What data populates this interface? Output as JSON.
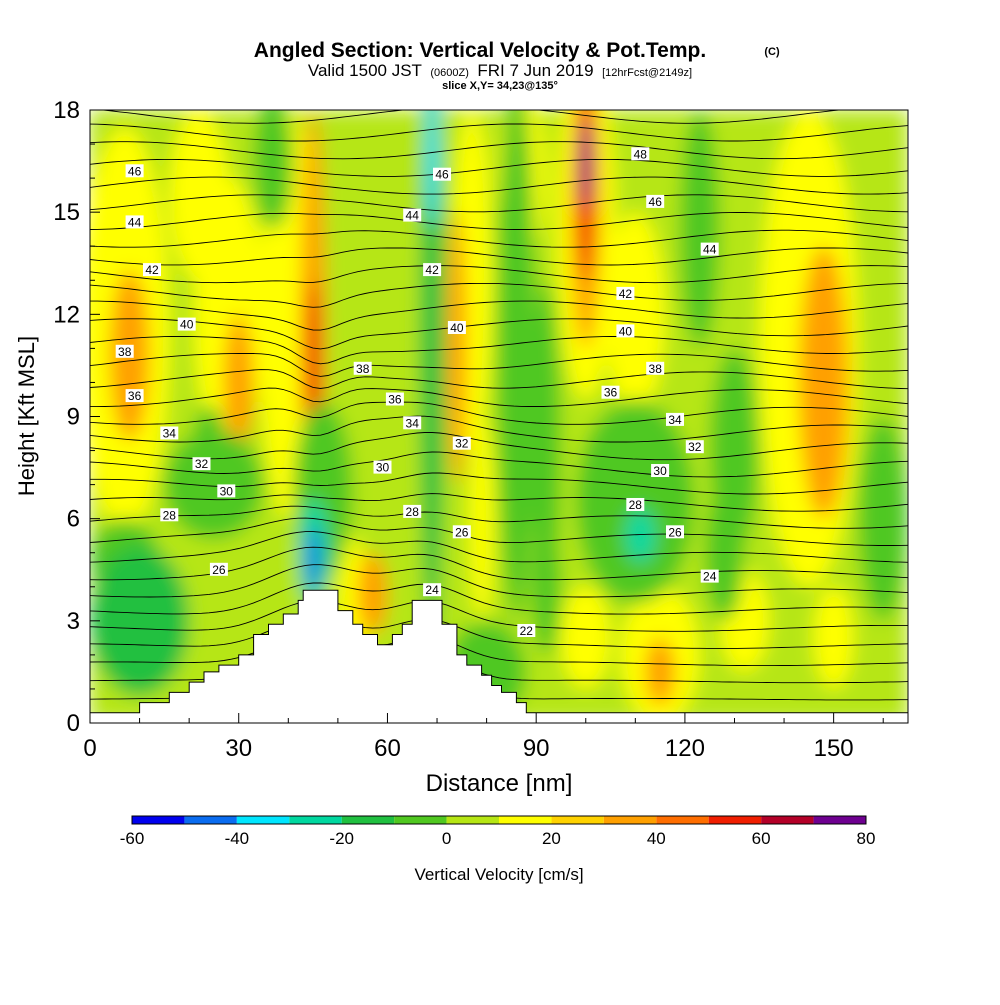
{
  "chart_data": {
    "type": "heatmap",
    "title": "Angled Section: Vertical Velocity & Pot.Temp.",
    "title_suffix": "(C)",
    "subtitle_parts": [
      "Valid 1500 JST",
      "(0600Z)",
      "FRI 7 Jun 2019",
      "[12hrFcst@2149z]"
    ],
    "subtitle2": "slice X,Y= 34,23@135°",
    "xlabel": "Distance [nm]",
    "ylabel": "Height [Kft MSL]",
    "xlim": [
      0,
      165
    ],
    "ylim": [
      0,
      18
    ],
    "xticks": [
      "0",
      "30",
      "60",
      "90",
      "120",
      "150"
    ],
    "xtick_values": [
      0,
      30,
      60,
      90,
      120,
      150
    ],
    "yticks": [
      "0",
      "3",
      "6",
      "9",
      "12",
      "15",
      "18"
    ],
    "ytick_values": [
      0,
      3,
      6,
      9,
      12,
      15,
      18
    ],
    "colorbar": {
      "label": "Vertical Velocity [cm/s]",
      "tick_labels": [
        "-60",
        "-40",
        "-20",
        "0",
        "20",
        "40",
        "60",
        "80"
      ],
      "tick_values": [
        -60,
        -40,
        -20,
        0,
        20,
        40,
        60,
        80
      ],
      "bins": [
        -60,
        -50,
        -40,
        -30,
        -20,
        -10,
        0,
        10,
        20,
        30,
        40,
        50,
        60,
        70,
        80
      ],
      "colors": [
        "#0000ee",
        "#0a6cf0",
        "#00e6ff",
        "#00d8a0",
        "#20c040",
        "#50c820",
        "#b6e614",
        "#ffff00",
        "#ffd200",
        "#ffa000",
        "#ff6e00",
        "#f01e00",
        "#b40028",
        "#6e0090"
      ]
    },
    "vertical_velocity_features": [
      {
        "x": 45,
        "z": 4.8,
        "w": -60,
        "note": "downdraft on lee of peak"
      },
      {
        "x": 69,
        "z": 16.5,
        "w": -40,
        "note": "downdraft column"
      },
      {
        "x": 45,
        "z": 10.5,
        "w": 50
      },
      {
        "x": 100,
        "z": 16.5,
        "w": 70
      },
      {
        "x": 7,
        "z": 10.8,
        "w": 30
      },
      {
        "x": 148,
        "z": 9.5,
        "w": 30
      },
      {
        "x": 110,
        "z": 5.5,
        "w": -25
      }
    ],
    "isentrope_labels": [
      {
        "value": "46",
        "x": 9,
        "z": 16.2
      },
      {
        "value": "44",
        "x": 9,
        "z": 14.7
      },
      {
        "value": "42",
        "x": 12.5,
        "z": 13.3
      },
      {
        "value": "40",
        "x": 19.5,
        "z": 11.7
      },
      {
        "value": "38",
        "x": 7,
        "z": 10.9
      },
      {
        "value": "36",
        "x": 9,
        "z": 9.6
      },
      {
        "value": "34",
        "x": 16,
        "z": 8.5
      },
      {
        "value": "32",
        "x": 22.5,
        "z": 7.6
      },
      {
        "value": "30",
        "x": 27.5,
        "z": 6.8
      },
      {
        "value": "28",
        "x": 16,
        "z": 6.1
      },
      {
        "value": "26",
        "x": 26,
        "z": 4.5
      },
      {
        "value": "46",
        "x": 71,
        "z": 16.1
      },
      {
        "value": "44",
        "x": 65,
        "z": 14.9
      },
      {
        "value": "42",
        "x": 69,
        "z": 13.3
      },
      {
        "value": "40",
        "x": 74,
        "z": 11.6
      },
      {
        "value": "38",
        "x": 55,
        "z": 10.4
      },
      {
        "value": "36",
        "x": 61.5,
        "z": 9.5
      },
      {
        "value": "34",
        "x": 65,
        "z": 8.8
      },
      {
        "value": "32",
        "x": 75,
        "z": 8.2
      },
      {
        "value": "30",
        "x": 59,
        "z": 7.5
      },
      {
        "value": "28",
        "x": 65,
        "z": 6.2
      },
      {
        "value": "26",
        "x": 75,
        "z": 5.6
      },
      {
        "value": "24",
        "x": 69,
        "z": 3.9
      },
      {
        "value": "22",
        "x": 88,
        "z": 2.7
      },
      {
        "value": "48",
        "x": 111,
        "z": 16.7
      },
      {
        "value": "46",
        "x": 114,
        "z": 15.3
      },
      {
        "value": "44",
        "x": 125,
        "z": 13.9
      },
      {
        "value": "42",
        "x": 108,
        "z": 12.6
      },
      {
        "value": "40",
        "x": 108,
        "z": 11.5
      },
      {
        "value": "38",
        "x": 114,
        "z": 10.4
      },
      {
        "value": "36",
        "x": 105,
        "z": 9.7
      },
      {
        "value": "34",
        "x": 118,
        "z": 8.9
      },
      {
        "value": "32",
        "x": 122,
        "z": 8.1
      },
      {
        "value": "30",
        "x": 115,
        "z": 7.4
      },
      {
        "value": "28",
        "x": 110,
        "z": 6.4
      },
      {
        "value": "26",
        "x": 118,
        "z": 5.6
      },
      {
        "value": "24",
        "x": 125,
        "z": 4.3
      }
    ],
    "terrain": [
      [
        0,
        0.3
      ],
      [
        10,
        0.3
      ],
      [
        10,
        0.6
      ],
      [
        16,
        0.6
      ],
      [
        16,
        0.9
      ],
      [
        20,
        0.9
      ],
      [
        20,
        1.2
      ],
      [
        23,
        1.2
      ],
      [
        23,
        1.5
      ],
      [
        26,
        1.5
      ],
      [
        26,
        1.7
      ],
      [
        30,
        1.7
      ],
      [
        30,
        2.0
      ],
      [
        33,
        2.0
      ],
      [
        33,
        2.6
      ],
      [
        36,
        2.6
      ],
      [
        36,
        2.9
      ],
      [
        39,
        2.9
      ],
      [
        39,
        3.2
      ],
      [
        42,
        3.2
      ],
      [
        42,
        3.6
      ],
      [
        43,
        3.6
      ],
      [
        43,
        3.9
      ],
      [
        50,
        3.9
      ],
      [
        50,
        3.3
      ],
      [
        53,
        3.3
      ],
      [
        53,
        2.9
      ],
      [
        55,
        2.9
      ],
      [
        55,
        2.6
      ],
      [
        58,
        2.6
      ],
      [
        58,
        2.3
      ],
      [
        61,
        2.3
      ],
      [
        61,
        2.6
      ],
      [
        63,
        2.6
      ],
      [
        63,
        2.9
      ],
      [
        65,
        2.9
      ],
      [
        65,
        3.6
      ],
      [
        71,
        3.6
      ],
      [
        71,
        2.9
      ],
      [
        74,
        2.9
      ],
      [
        74,
        2.0
      ],
      [
        76,
        2.0
      ],
      [
        76,
        1.7
      ],
      [
        79,
        1.7
      ],
      [
        79,
        1.4
      ],
      [
        81,
        1.4
      ],
      [
        81,
        1.1
      ],
      [
        83,
        1.1
      ],
      [
        83,
        0.9
      ],
      [
        86,
        0.9
      ],
      [
        86,
        0.6
      ],
      [
        88,
        0.6
      ],
      [
        88,
        0.3
      ],
      [
        165,
        0.3
      ]
    ]
  }
}
